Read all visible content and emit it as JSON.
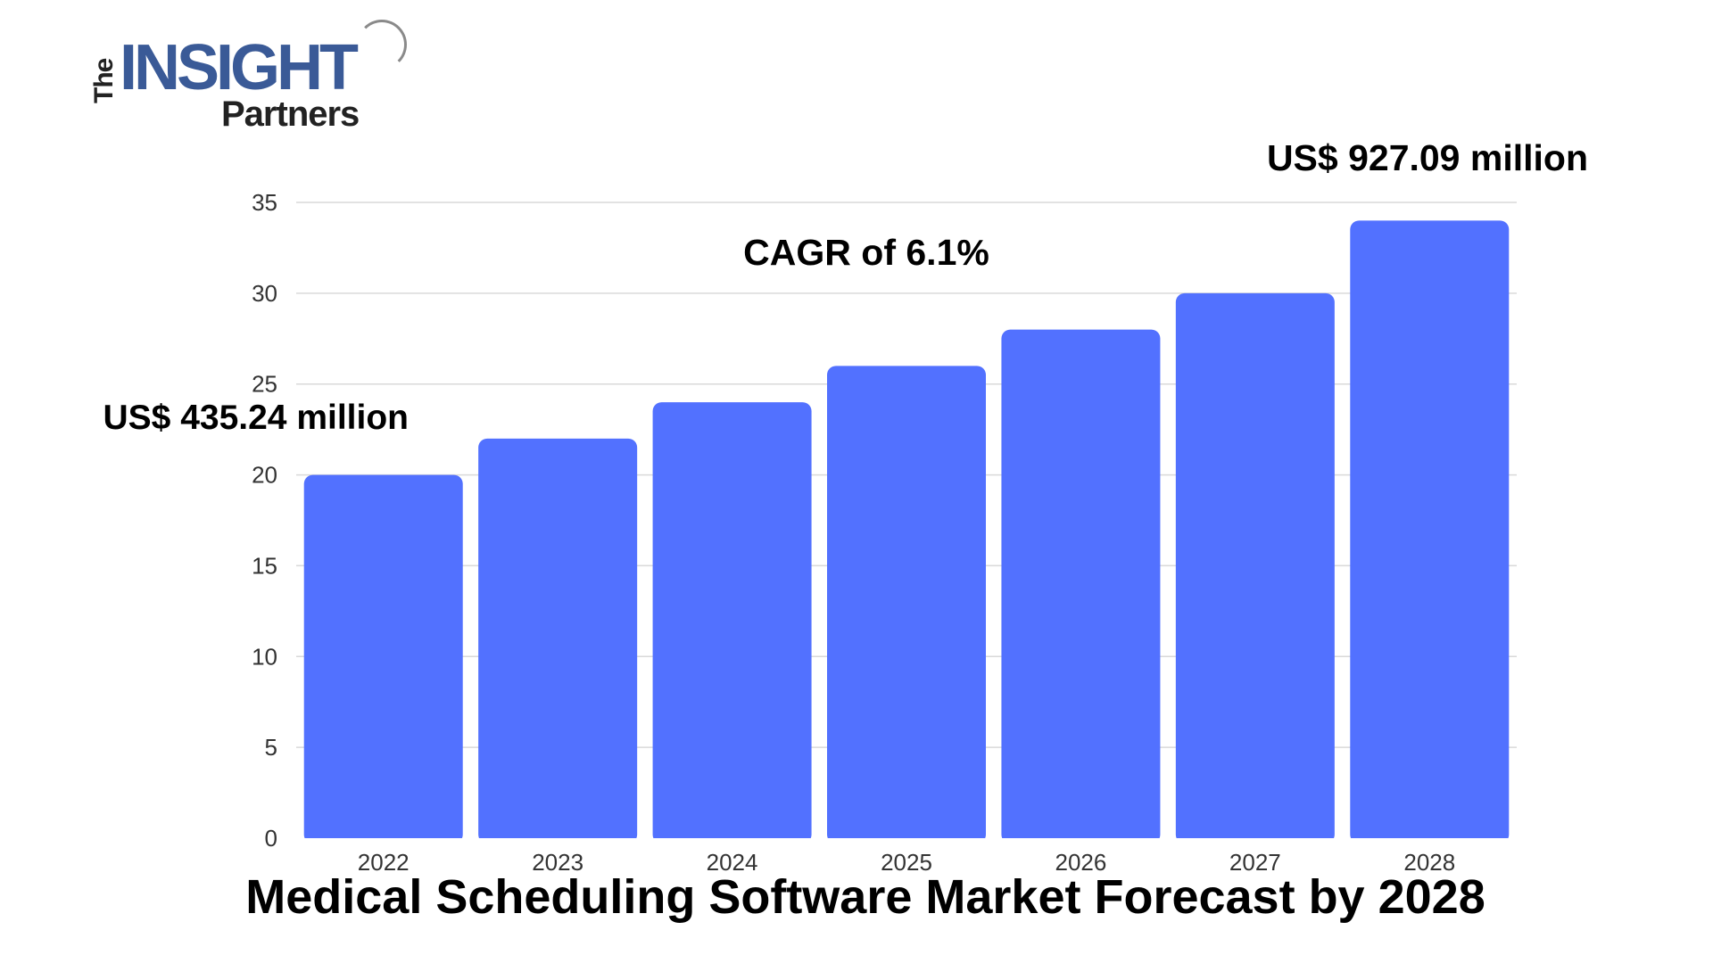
{
  "brand": {
    "logo_the": "The",
    "logo_insight": "INSIGHT",
    "logo_partners": "Partners"
  },
  "colors": {
    "bar": "#5271ff",
    "grid": "#d9d9d9",
    "text": "#000000",
    "axis_text": "#333333"
  },
  "chart_data": {
    "type": "bar",
    "title": "Medical Scheduling Software Market Forecast by 2028",
    "categories": [
      "2022",
      "2023",
      "2024",
      "2025",
      "2026",
      "2027",
      "2028"
    ],
    "values": [
      20,
      22,
      24,
      26,
      28,
      30,
      34
    ],
    "ylim": [
      0,
      35
    ],
    "yticks": [
      0,
      5,
      10,
      15,
      20,
      25,
      30,
      35
    ],
    "grid": true,
    "annotations": {
      "start": "US$ 435.24 million",
      "cagr": "CAGR of 6.1%",
      "end": "US$ 927.09 million"
    }
  }
}
